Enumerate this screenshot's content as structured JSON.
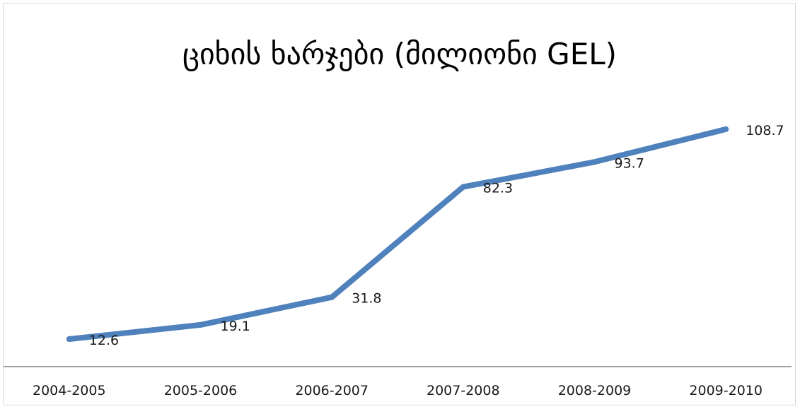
{
  "chart_data": {
    "type": "line",
    "title": "ციხის ხარჯები (მილიონი GEL)",
    "categories": [
      "2004-2005",
      "2005-2006",
      "2006-2007",
      "2007-2008",
      "2008-2009",
      "2009-2010"
    ],
    "series": [
      {
        "values": [
          12.6,
          19.1,
          31.8,
          82.3,
          93.7,
          108.7
        ],
        "color": "#4f81bd"
      }
    ],
    "data_labels": [
      "12.6",
      "19.1",
      "31.8",
      "82.3",
      "93.7",
      "108.7"
    ],
    "xlabel": "",
    "ylabel": "",
    "ylim": [
      0,
      120
    ],
    "grid": false,
    "legend": "none"
  },
  "colors": {
    "line": "#4f81bd",
    "axis": "#808080",
    "text": "#1a1a1a"
  }
}
